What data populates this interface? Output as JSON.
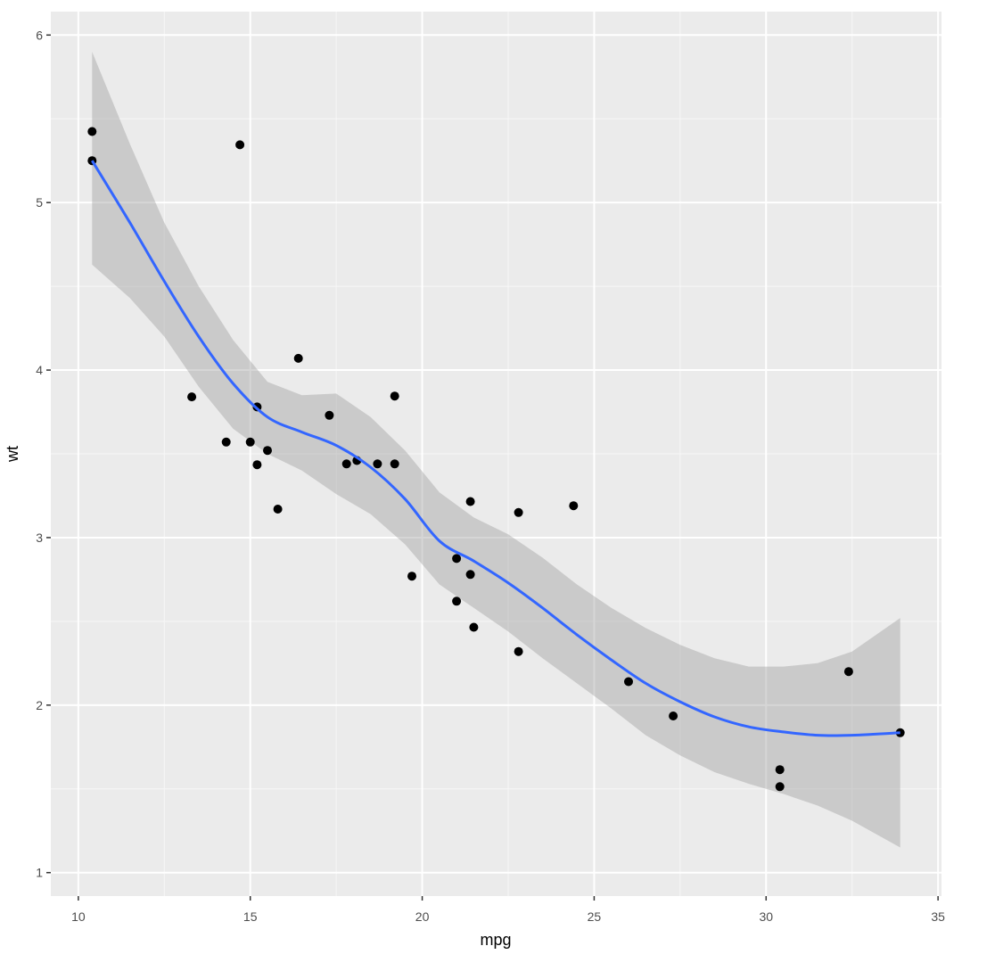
{
  "chart_data": {
    "type": "scatter",
    "title": "",
    "xlabel": "mpg",
    "ylabel": "wt",
    "xlim": [
      9.2,
      35.1
    ],
    "ylim": [
      0.86,
      6.14
    ],
    "x_ticks": [
      10,
      15,
      20,
      25,
      30,
      35
    ],
    "y_ticks": [
      1,
      2,
      3,
      4,
      5,
      6
    ],
    "grid": true,
    "legend": null,
    "series": [
      {
        "name": "points",
        "type": "scatter",
        "color": "#000000",
        "x": [
          21.0,
          21.0,
          22.8,
          21.4,
          18.7,
          18.1,
          14.3,
          24.4,
          22.8,
          19.2,
          17.8,
          16.4,
          17.3,
          15.2,
          10.4,
          10.4,
          14.7,
          32.4,
          30.4,
          33.9,
          21.5,
          15.5,
          15.2,
          13.3,
          19.2,
          27.3,
          26.0,
          30.4,
          15.8,
          19.7,
          15.0,
          21.4
        ],
        "y": [
          2.62,
          2.875,
          2.32,
          3.215,
          3.44,
          3.46,
          3.57,
          3.19,
          3.15,
          3.44,
          3.44,
          4.07,
          3.73,
          3.78,
          5.25,
          5.424,
          5.345,
          2.2,
          1.615,
          1.835,
          2.465,
          3.52,
          3.435,
          3.84,
          3.845,
          1.935,
          2.14,
          1.513,
          3.17,
          2.77,
          3.57,
          2.78
        ]
      },
      {
        "name": "loess smooth",
        "type": "line",
        "color": "#3366FF",
        "x": [
          10.4,
          11.5,
          12.5,
          13.5,
          14.5,
          15.5,
          16.5,
          17.5,
          18.5,
          19.5,
          20.5,
          21.5,
          22.5,
          23.5,
          24.5,
          25.5,
          26.5,
          27.5,
          28.5,
          29.5,
          30.5,
          31.5,
          32.5,
          33.9
        ],
        "y": [
          5.25,
          4.88,
          4.53,
          4.2,
          3.92,
          3.72,
          3.63,
          3.55,
          3.42,
          3.23,
          2.98,
          2.86,
          2.73,
          2.58,
          2.42,
          2.27,
          2.13,
          2.02,
          1.93,
          1.87,
          1.84,
          1.82,
          1.82,
          1.835
        ]
      },
      {
        "name": "confidence band",
        "type": "area",
        "color": "#999999",
        "x": [
          10.4,
          11.5,
          12.5,
          13.5,
          14.5,
          15.5,
          16.5,
          17.5,
          18.5,
          19.5,
          20.5,
          21.5,
          22.5,
          23.5,
          24.5,
          25.5,
          26.5,
          27.5,
          28.5,
          29.5,
          30.5,
          31.5,
          32.5,
          33.9
        ],
        "upper": [
          5.9,
          5.35,
          4.88,
          4.5,
          4.18,
          3.93,
          3.85,
          3.86,
          3.72,
          3.52,
          3.27,
          3.12,
          3.02,
          2.88,
          2.72,
          2.58,
          2.46,
          2.36,
          2.28,
          2.23,
          2.23,
          2.25,
          2.32,
          2.52
        ],
        "lower": [
          4.63,
          4.43,
          4.2,
          3.9,
          3.65,
          3.5,
          3.4,
          3.26,
          3.14,
          2.96,
          2.72,
          2.58,
          2.44,
          2.28,
          2.13,
          1.98,
          1.82,
          1.7,
          1.6,
          1.53,
          1.47,
          1.4,
          1.31,
          1.15
        ]
      }
    ]
  },
  "style": {
    "panel_bg": "#EBEBEB",
    "grid_major": "#FFFFFF",
    "point_color": "#000000",
    "smooth_color": "#3366FF",
    "ribbon_color": "#999999",
    "ribbon_opacity": 0.4
  },
  "axes": {
    "x_title": "mpg",
    "y_title": "wt"
  }
}
